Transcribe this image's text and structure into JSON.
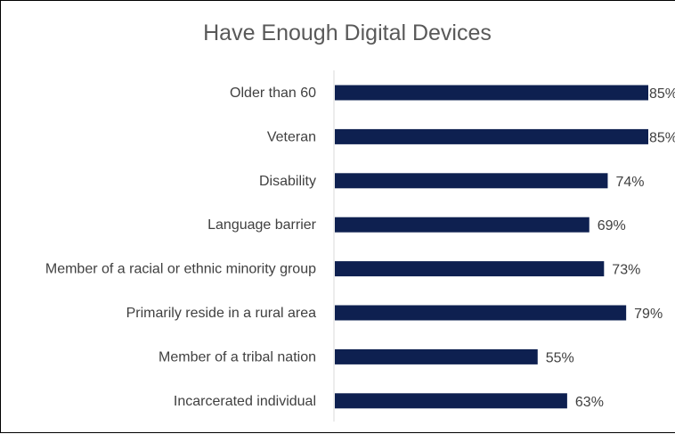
{
  "chart_data": {
    "type": "bar",
    "orientation": "horizontal",
    "title": "Have Enough Digital Devices",
    "categories": [
      "Older than 60",
      "Veteran",
      "Disability",
      "Language barrier",
      "Member of a racial or ethnic minority group",
      "Primarily reside in a rural area",
      "Member of a tribal nation",
      "Incarcerated individual"
    ],
    "values": [
      85,
      85,
      74,
      69,
      73,
      79,
      55,
      63
    ],
    "value_labels": [
      "85%",
      "85%",
      "74%",
      "69%",
      "73%",
      "79%",
      "55%",
      "63%"
    ],
    "xlim": [
      0,
      85
    ],
    "grid": false,
    "legend": "none",
    "bar_color": "#0E2050"
  }
}
